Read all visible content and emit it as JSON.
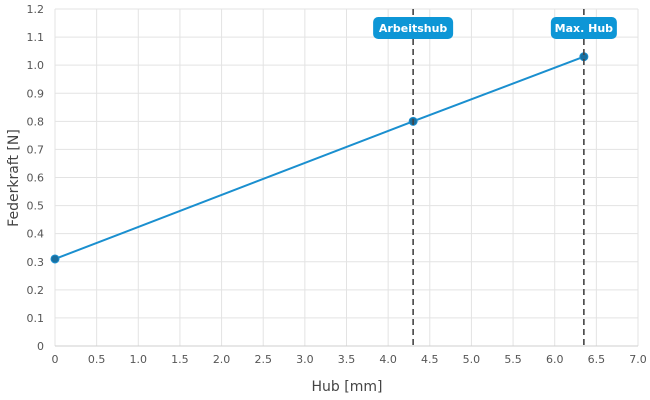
{
  "chart_data": {
    "type": "line",
    "title": "",
    "xlabel": "Hub [mm]",
    "ylabel": "Federkraft [N]",
    "xlim": [
      0,
      7.0
    ],
    "ylim": [
      0,
      1.2
    ],
    "grid": true,
    "x_ticks": [
      "0",
      "0.5",
      "1.0",
      "1.5",
      "2.0",
      "2.5",
      "3.0",
      "3.5",
      "4.0",
      "4.5",
      "5.0",
      "5.5",
      "6.0",
      "6.5",
      "7.0"
    ],
    "y_ticks": [
      "0",
      "0.1",
      "0.2",
      "0.3",
      "0.4",
      "0.5",
      "0.6",
      "0.7",
      "0.8",
      "0.9",
      "1.0",
      "1.1",
      "1.2"
    ],
    "series": [
      {
        "points": [
          {
            "x": 0,
            "y": 0.31
          },
          {
            "x": 4.3,
            "y": 0.8
          },
          {
            "x": 6.35,
            "y": 1.03
          }
        ]
      }
    ],
    "annotations": [
      {
        "label": "Arbeitshub",
        "x": 4.3
      },
      {
        "label": "Max. Hub",
        "x": 6.35
      }
    ],
    "colors": {
      "line": "#1a8fcf",
      "marker": "#1a6f9f",
      "badge": "#0d96d6",
      "grid": "#e3e3e3",
      "dashed": "#444444"
    }
  }
}
